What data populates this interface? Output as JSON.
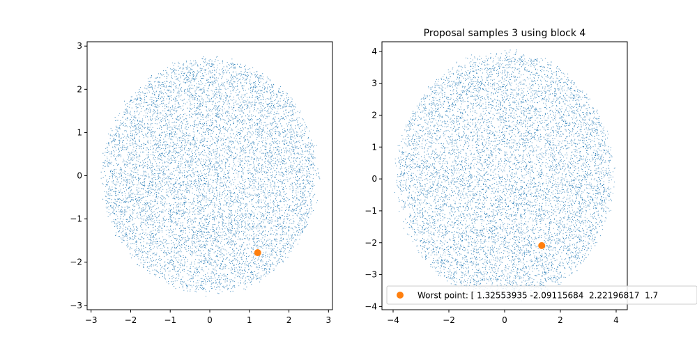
{
  "chart_data": [
    {
      "type": "scatter",
      "title": "",
      "xlabel": "",
      "ylabel": "",
      "xlim": [
        -3.1,
        3.1
      ],
      "ylim": [
        -3.1,
        3.1
      ],
      "xticks": [
        "−3",
        "−2",
        "−1",
        "0",
        "1",
        "2",
        "3"
      ],
      "yticks": [
        "−3",
        "−2",
        "−1",
        "0",
        "1",
        "2",
        "3"
      ],
      "xtick_values": [
        -3,
        -2,
        -1,
        0,
        1,
        2,
        3
      ],
      "ytick_values": [
        -3,
        -2,
        -1,
        0,
        1,
        2,
        3
      ],
      "grid": false,
      "series": [
        {
          "kind": "samples",
          "color": "#1f77b4",
          "distribution": "approximately uniform disk",
          "center": [
            0,
            0
          ],
          "radius": 2.8,
          "n": 9000
        },
        {
          "kind": "highlight",
          "color": "#ff7f0e",
          "points": [
            [
              1.21,
              -1.78
            ]
          ]
        }
      ]
    },
    {
      "type": "scatter",
      "title": "Proposal samples 3 using block 4",
      "xlabel": "",
      "ylabel": "",
      "xlim": [
        -4.4,
        4.4
      ],
      "ylim": [
        -4.1,
        4.3
      ],
      "xticks": [
        "−4",
        "−2",
        "0",
        "2",
        "4"
      ],
      "yticks": [
        "−4",
        "−3",
        "−2",
        "−1",
        "0",
        "1",
        "2",
        "3",
        "4"
      ],
      "xtick_values": [
        -4,
        -2,
        0,
        2,
        4
      ],
      "ytick_values": [
        -4,
        -3,
        -2,
        -1,
        0,
        1,
        2,
        3,
        4
      ],
      "grid": false,
      "legend_position": "lower-left",
      "legend": [
        "Worst point: [ 1.32553935 -2.09115684  2.22196817  1.7"
      ],
      "series": [
        {
          "kind": "samples",
          "color": "#1f77b4",
          "distribution": "approximately uniform disk",
          "center": [
            0,
            0.1
          ],
          "radius": 4.0,
          "n": 9000
        },
        {
          "kind": "highlight",
          "name": "Worst point: [ 1.32553935 -2.09115684  2.22196817  1.7",
          "color": "#ff7f0e",
          "points": [
            [
              1.33,
              -2.09
            ]
          ]
        }
      ]
    }
  ]
}
